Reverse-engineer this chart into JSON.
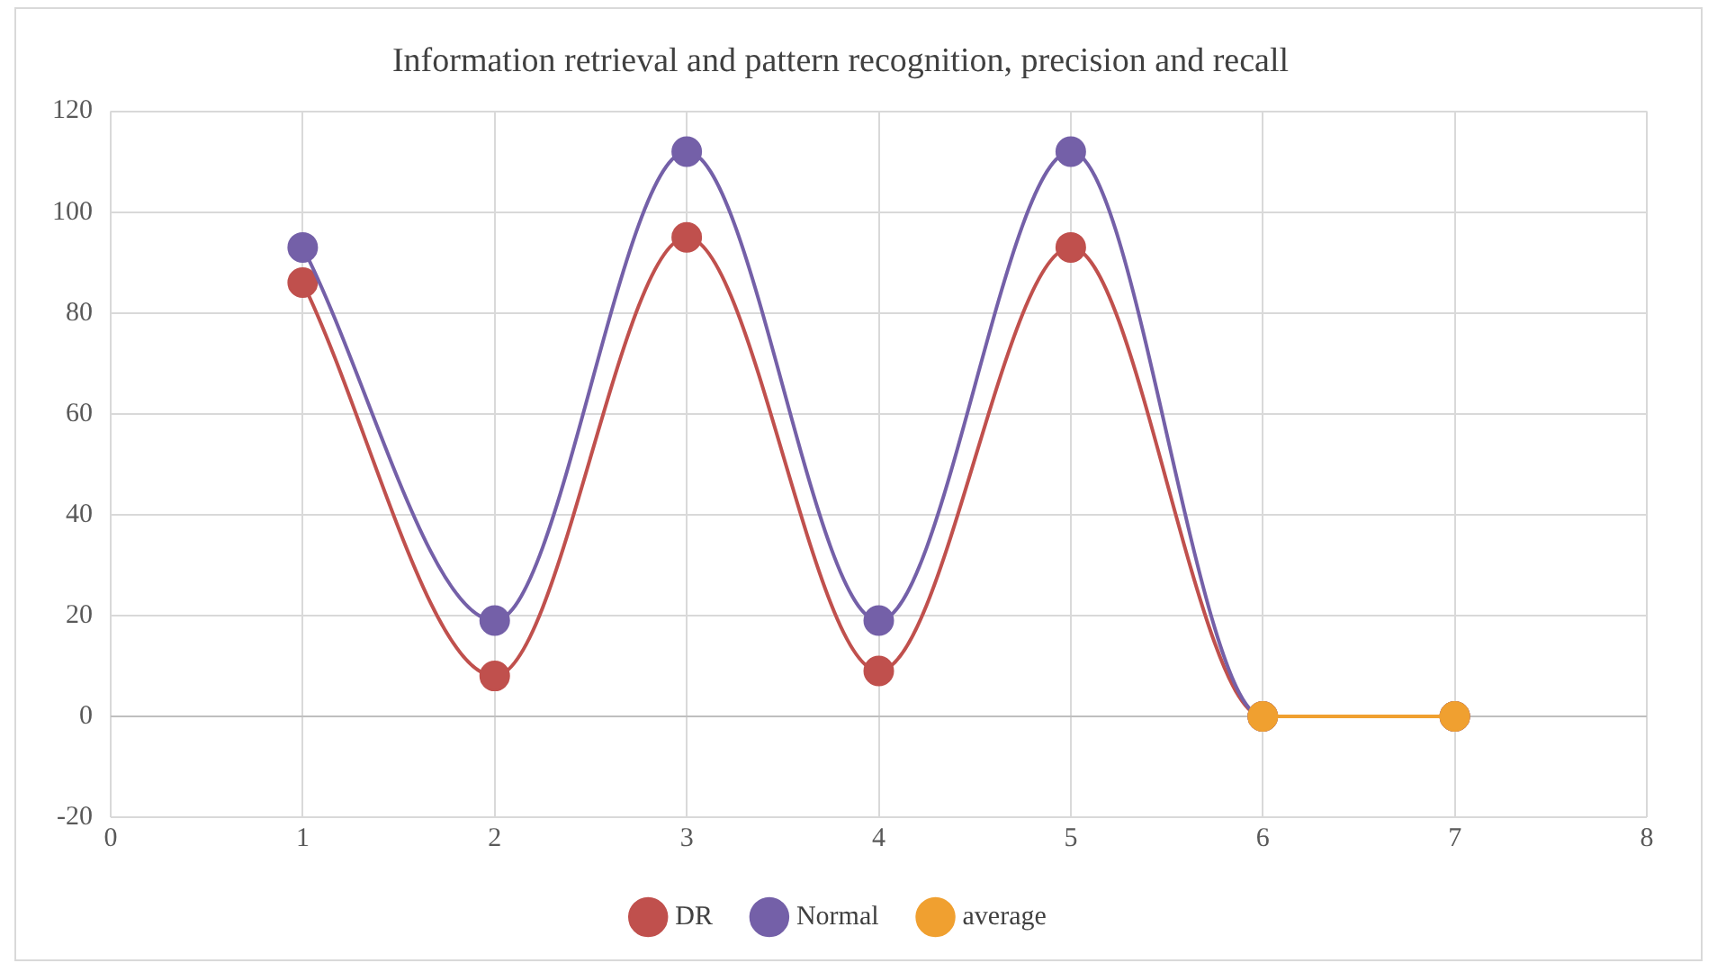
{
  "chart_data": {
    "type": "line",
    "title": "Information retrieval and pattern recognition, precision and recall",
    "series": [
      {
        "name": "DR",
        "color": "#c0504d",
        "x": [
          1,
          2,
          3,
          4,
          5,
          6,
          7
        ],
        "values": [
          86,
          8,
          95,
          9,
          93,
          0,
          0
        ]
      },
      {
        "name": "Normal",
        "color": "#7460a8",
        "x": [
          1,
          2,
          3,
          4,
          5,
          6,
          7
        ],
        "values": [
          93,
          19,
          112,
          19,
          112,
          0,
          0
        ]
      },
      {
        "name": "average",
        "color": "#f0a030",
        "x": [
          6,
          7
        ],
        "values": [
          0,
          0
        ]
      }
    ],
    "xlim": [
      0,
      8
    ],
    "xticks": [
      0,
      1,
      2,
      3,
      4,
      5,
      6,
      7,
      8
    ],
    "ylim": [
      -20,
      120
    ],
    "yticks": [
      -20,
      0,
      20,
      40,
      60,
      80,
      100,
      120
    ],
    "grid": true,
    "legend": "bottom",
    "marker": "circle",
    "line_style": "solid"
  }
}
